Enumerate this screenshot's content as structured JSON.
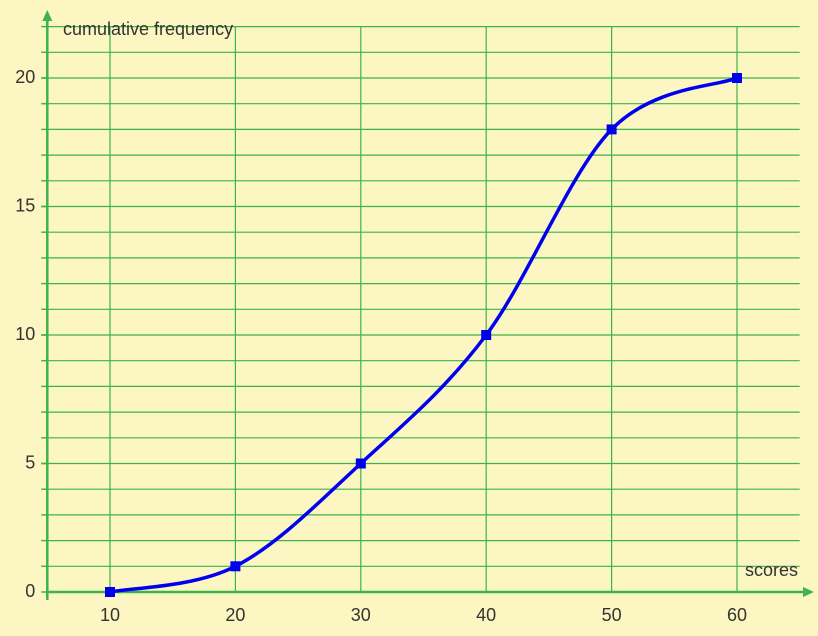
{
  "chart_data": {
    "type": "line",
    "y_label": "cumulative frequency",
    "x_label": "scores",
    "x": [
      10,
      20,
      30,
      40,
      50,
      60
    ],
    "series": [
      {
        "name": "cumulative frequency",
        "color": "#0000ee",
        "values": [
          0,
          1,
          5,
          10,
          18,
          20
        ]
      }
    ],
    "xlim": [
      5,
      65
    ],
    "ylim": [
      0,
      22.5
    ],
    "xticks": [
      10,
      20,
      30,
      40,
      50,
      60
    ],
    "yticks": [
      0,
      5,
      10,
      15,
      20
    ],
    "yminor": [
      1,
      2,
      3,
      4,
      5,
      6,
      7,
      8,
      9,
      10,
      11,
      12,
      13,
      14,
      15,
      16,
      17,
      18,
      19,
      20,
      21,
      22
    ],
    "grid": true,
    "grid_color": "#3cb44b",
    "background": "#fbf6c2"
  }
}
